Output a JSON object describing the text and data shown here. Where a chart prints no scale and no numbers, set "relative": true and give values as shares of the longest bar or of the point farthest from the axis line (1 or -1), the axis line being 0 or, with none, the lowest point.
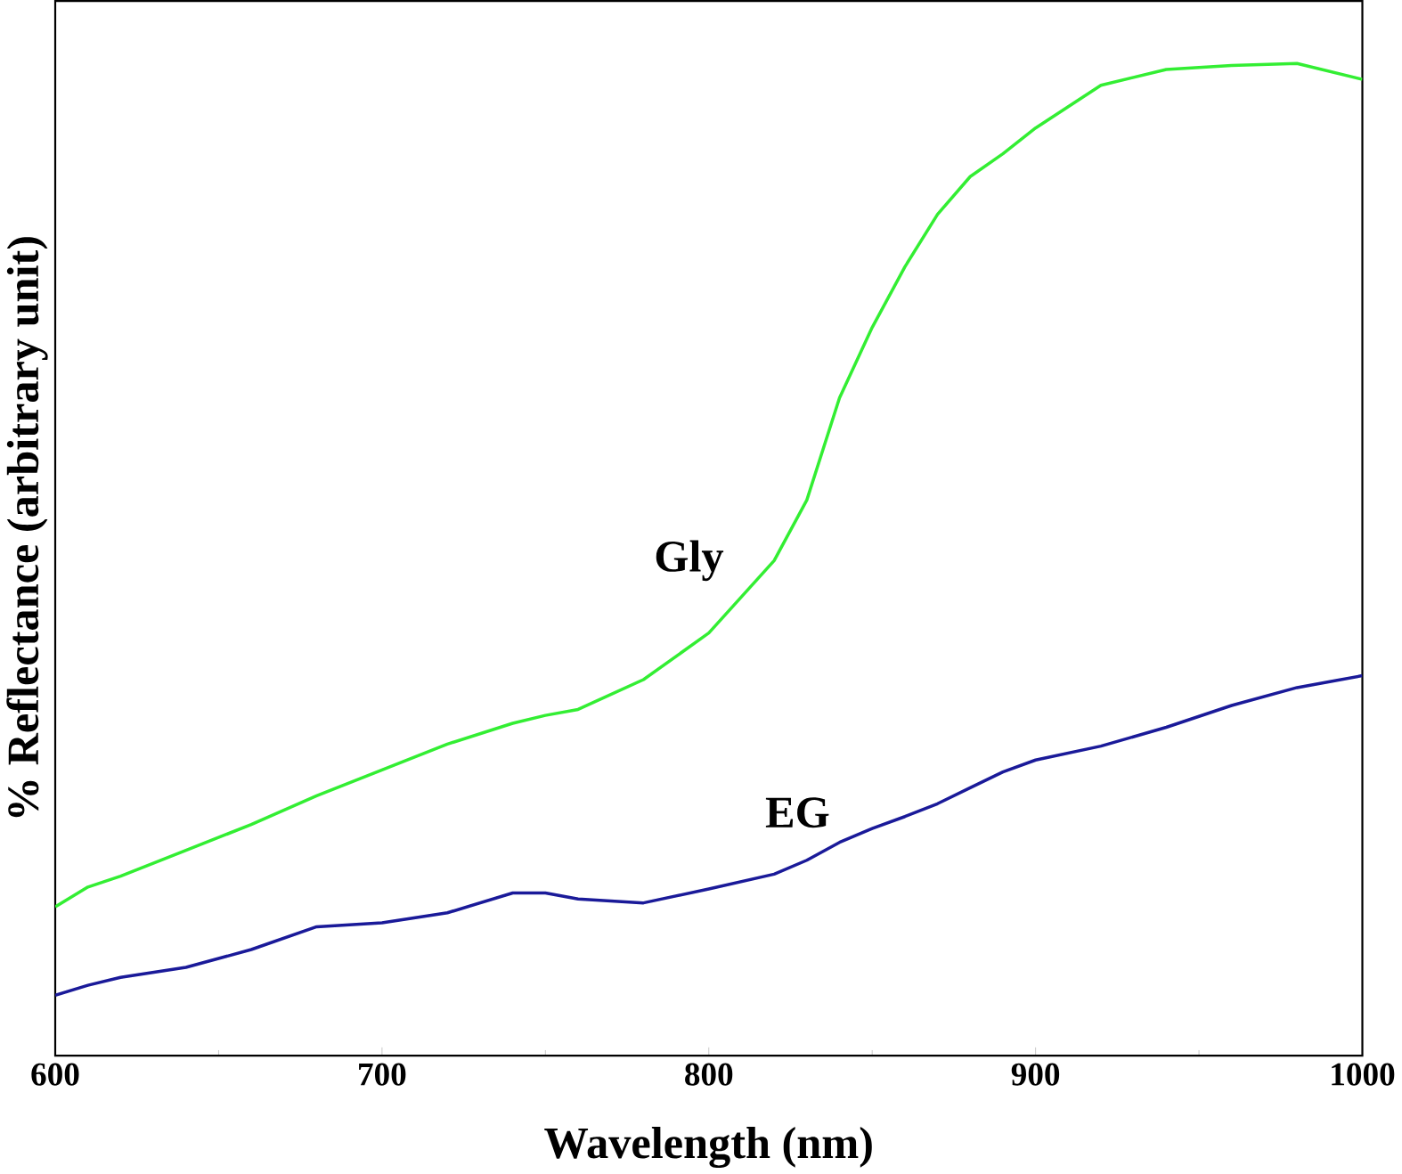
{
  "chart_data": {
    "type": "line",
    "relative": true,
    "xlabel": "Wavelength (nm)",
    "ylabel": "% Reflectance (arbitrary unit)",
    "xlim": [
      600,
      1000
    ],
    "xticks": [
      600,
      700,
      800,
      900,
      1000
    ],
    "legend": false,
    "grid": false,
    "marker": "none",
    "line_style": "solid",
    "x": [
      600,
      610,
      620,
      640,
      660,
      680,
      700,
      720,
      740,
      750,
      760,
      780,
      800,
      820,
      830,
      840,
      850,
      860,
      870,
      880,
      890,
      900,
      920,
      940,
      960,
      980,
      1000
    ],
    "series": [
      {
        "name": "Gly",
        "color": "#33ee33",
        "values": [
          0.15,
          0.17,
          0.181,
          0.207,
          0.233,
          0.262,
          0.288,
          0.314,
          0.335,
          0.343,
          0.349,
          0.379,
          0.426,
          0.499,
          0.56,
          0.663,
          0.734,
          0.795,
          0.848,
          0.886,
          0.909,
          0.935,
          0.978,
          0.994,
          0.998,
          1.0,
          0.984
        ]
      },
      {
        "name": "EG",
        "color": "#1a1a99",
        "values": [
          0.061,
          0.071,
          0.079,
          0.089,
          0.107,
          0.13,
          0.134,
          0.144,
          0.164,
          0.164,
          0.158,
          0.154,
          0.168,
          0.183,
          0.197,
          0.215,
          0.229,
          0.241,
          0.254,
          0.27,
          0.286,
          0.298,
          0.312,
          0.331,
          0.353,
          0.371,
          0.383
        ]
      }
    ]
  }
}
